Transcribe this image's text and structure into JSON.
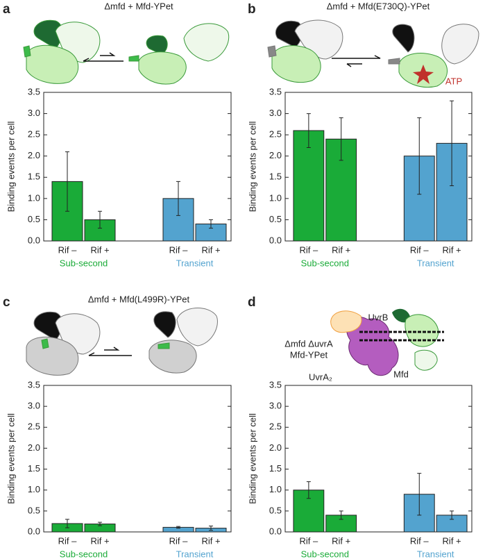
{
  "chart_data": [
    {
      "type": "bar",
      "panel": "a",
      "title": "Δmfd + Mfd-YPet",
      "y_label": "Binding events per cell",
      "ylim": [
        0,
        3.5
      ],
      "yticks": [
        {
          "value": 0,
          "label": "0.0"
        },
        0.5,
        {
          "value": 1,
          "label": "1.0"
        },
        1.5,
        {
          "value": 2,
          "label": "2.0"
        },
        2.5,
        {
          "value": 3,
          "label": "3.0"
        },
        3.5
      ],
      "series": [
        {
          "name": "Sub-second",
          "color": "#1aab38",
          "categories": [
            "Rif –",
            "Rif +"
          ],
          "values": [
            1.4,
            0.5
          ],
          "errors": [
            0.7,
            0.2
          ]
        },
        {
          "name": "Transient",
          "color": "#53a3cf",
          "categories": [
            "Rif –",
            "Rif +"
          ],
          "values": [
            1.0,
            0.4
          ],
          "errors": [
            0.4,
            0.1
          ]
        }
      ]
    },
    {
      "type": "bar",
      "panel": "b",
      "title": "Δmfd + Mfd(E730Q)-YPet",
      "y_label": "Binding events per cell",
      "annotations": [
        "ATP"
      ],
      "ylim": [
        0,
        3.5
      ],
      "yticks": [
        {
          "value": 0,
          "label": "0.0"
        },
        0.5,
        {
          "value": 1,
          "label": "1.0"
        },
        1.5,
        {
          "value": 2,
          "label": "2.0"
        },
        2.5,
        {
          "value": 3,
          "label": "3.0"
        },
        3.5
      ],
      "series": [
        {
          "name": "Sub-second",
          "color": "#1aab38",
          "categories": [
            "Rif –",
            "Rif +"
          ],
          "values": [
            2.6,
            2.4
          ],
          "errors": [
            0.4,
            0.5
          ]
        },
        {
          "name": "Transient",
          "color": "#53a3cf",
          "categories": [
            "Rif –",
            "Rif +"
          ],
          "values": [
            2.0,
            2.3
          ],
          "errors": [
            0.9,
            1.0
          ]
        }
      ]
    },
    {
      "type": "bar",
      "panel": "c",
      "title": "Δmfd + Mfd(L499R)-YPet",
      "y_label": "Binding events per cell",
      "ylim": [
        0,
        3.5
      ],
      "yticks": [
        {
          "value": 0,
          "label": "0.0"
        },
        0.5,
        {
          "value": 1,
          "label": "1.0"
        },
        1.5,
        {
          "value": 2,
          "label": "2.0"
        },
        2.5,
        {
          "value": 3,
          "label": "3.0"
        },
        3.5
      ],
      "series": [
        {
          "name": "Sub-second",
          "color": "#1aab38",
          "categories": [
            "Rif –",
            "Rif +"
          ],
          "values": [
            0.2,
            0.19
          ],
          "errors": [
            0.1,
            0.04
          ]
        },
        {
          "name": "Transient",
          "color": "#53a3cf",
          "categories": [
            "Rif –",
            "Rif +"
          ],
          "values": [
            0.11,
            0.09
          ],
          "errors": [
            0.02,
            0.05
          ]
        }
      ]
    },
    {
      "type": "bar",
      "panel": "d",
      "title": [
        "Δmfd ΔuvrA",
        "Mfd-YPet"
      ],
      "y_label": "Binding events per cell",
      "annotations": [
        "UvrB",
        "UvrA₂",
        "Mfd"
      ],
      "ylim": [
        0,
        3.5
      ],
      "yticks": [
        {
          "value": 0,
          "label": "0.0"
        },
        0.5,
        {
          "value": 1,
          "label": "1.0"
        },
        1.5,
        {
          "value": 2,
          "label": "2.0"
        },
        2.5,
        {
          "value": 3,
          "label": "3.0"
        },
        3.5
      ],
      "series": [
        {
          "name": "Sub-second",
          "color": "#1aab38",
          "categories": [
            "Rif –",
            "Rif +"
          ],
          "values": [
            1.0,
            0.4
          ],
          "errors": [
            0.2,
            0.1
          ]
        },
        {
          "name": "Transient",
          "color": "#53a3cf",
          "categories": [
            "Rif –",
            "Rif +"
          ],
          "values": [
            0.9,
            0.4
          ],
          "errors": [
            0.5,
            0.1
          ]
        }
      ]
    }
  ]
}
